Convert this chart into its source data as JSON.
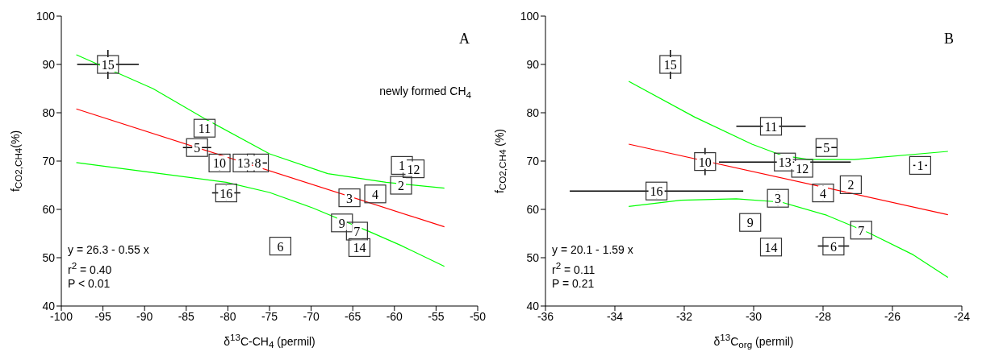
{
  "chart_data": [
    {
      "type": "scatter",
      "xlabel": "δ$^{13}$C-CH$_{4}$ (permil)",
      "ylabel": "f$_{CO2,CH4}$(%)",
      "xlim": [
        -100,
        -50
      ],
      "xticks": [
        -100,
        -95,
        -90,
        -85,
        -80,
        -75,
        -70,
        -65,
        -60,
        -55,
        -50
      ],
      "ylim": [
        40,
        100
      ],
      "yticks": [
        40,
        50,
        60,
        70,
        80,
        90,
        100
      ],
      "annotations": [
        "A",
        "newly formed CH$_{4}$",
        "y = 26.3 - 0.55 x",
        "r$^{2}$ = 0.40",
        "P < 0.01",
        {
          "text": "15",
          "x": -94.4,
          "y": 90.0
        },
        {
          "text": "11",
          "x": -82.8,
          "y": 76.8
        },
        {
          "text": "5",
          "x": -83.7,
          "y": 72.8
        },
        {
          "text": "10",
          "x": -81.0,
          "y": 69.6
        },
        {
          "text": "13",
          "x": -78.1,
          "y": 69.6
        },
        {
          "text": "8",
          "x": -76.4,
          "y": 69.6
        },
        {
          "text": "16",
          "x": -80.2,
          "y": 63.4
        },
        {
          "text": "1",
          "x": -59.1,
          "y": 69.1
        },
        {
          "text": "12",
          "x": -57.7,
          "y": 68.4
        },
        {
          "text": "2",
          "x": -59.2,
          "y": 65.0
        },
        {
          "text": "4",
          "x": -62.3,
          "y": 63.2
        },
        {
          "text": "3",
          "x": -65.4,
          "y": 62.4
        },
        {
          "text": "9",
          "x": -66.3,
          "y": 57.2
        },
        {
          "text": "7",
          "x": -64.5,
          "y": 55.5
        },
        {
          "text": "14",
          "x": -64.2,
          "y": 52.1
        },
        {
          "text": "6",
          "x": -73.7,
          "y": 52.4
        }
      ],
      "series": [
        {
          "type": "scatter",
          "color": "#333333",
          "marker": "square",
          "x": [
            -94.4,
            -82.8,
            -83.7,
            -81.0,
            -78.1,
            -76.4,
            -80.2,
            -59.1,
            -57.7,
            -59.2,
            -62.3,
            -65.4,
            -66.3,
            -64.5,
            -64.2,
            -73.7
          ],
          "values": [
            90.0,
            76.8,
            72.8,
            69.6,
            69.6,
            69.6,
            63.4,
            69.1,
            68.4,
            65.0,
            63.2,
            62.4,
            57.2,
            55.5,
            52.1,
            52.4
          ],
          "errors": [
            3.0,
            1.2,
            1.0,
            1.5,
            null,
            null,
            1.5,
            null,
            null,
            null,
            1.3,
            1.3,
            null,
            null,
            null,
            null
          ],
          "xerrors": [
            3.7,
            null,
            1.7,
            null,
            null,
            1.1,
            1.7,
            null,
            null,
            null,
            null,
            null,
            null,
            null,
            null,
            null
          ]
        },
        {
          "type": "line",
          "color": "#ff0000",
          "x": [
            -98.2,
            -54.0
          ],
          "values": [
            80.8,
            56.4
          ]
        },
        {
          "type": "line",
          "color": "#00ff00",
          "x": [
            -98.2,
            -89.0,
            -82.8,
            -75.0,
            -68.0,
            -61.0,
            -54.0
          ],
          "values": [
            92.0,
            85.0,
            78.8,
            71.5,
            67.4,
            65.6,
            64.4
          ]
        },
        {
          "type": "line",
          "color": "#00ff00",
          "x": [
            -98.2,
            -89.0,
            -80.2,
            -75.0,
            -69.8,
            -63.0,
            -59.3,
            -54.0
          ],
          "values": [
            69.7,
            67.6,
            65.6,
            63.5,
            60.3,
            55.4,
            52.6,
            48.2
          ]
        }
      ]
    },
    {
      "type": "scatter",
      "xlabel": "δ$^{13}$C$_{org}$ (permil)",
      "ylabel": "f$_{CO2,CH4}$ (%)",
      "xlim": [
        -36,
        -24
      ],
      "xticks": [
        -36,
        -34,
        -32,
        -30,
        -28,
        -26,
        -24
      ],
      "ylim": [
        40,
        100
      ],
      "yticks": [
        40,
        50,
        60,
        70,
        80,
        90,
        100
      ],
      "annotations": [
        "B",
        "y = 20.1 - 1.59 x",
        "r$^{2}$ = 0.11",
        "P = 0.21",
        {
          "text": "15",
          "x": -32.4,
          "y": 90.0
        },
        {
          "text": "11",
          "x": -29.5,
          "y": 77.2
        },
        {
          "text": "5",
          "x": -27.9,
          "y": 72.8
        },
        {
          "text": "10",
          "x": -31.4,
          "y": 69.9
        },
        {
          "text": "13",
          "x": -29.1,
          "y": 69.8
        },
        {
          "text": "12",
          "x": -28.6,
          "y": 68.5
        },
        {
          "text": "1",
          "x": -25.2,
          "y": 69.1
        },
        {
          "text": "16",
          "x": -32.8,
          "y": 63.8
        },
        {
          "text": "2",
          "x": -27.2,
          "y": 65.1
        },
        {
          "text": "4",
          "x": -28.0,
          "y": 63.4
        },
        {
          "text": "3",
          "x": -29.3,
          "y": 62.3
        },
        {
          "text": "9",
          "x": -30.1,
          "y": 57.3
        },
        {
          "text": "7",
          "x": -26.9,
          "y": 55.7
        },
        {
          "text": "14",
          "x": -29.5,
          "y": 52.2
        },
        {
          "text": "6",
          "x": -27.7,
          "y": 52.4
        }
      ],
      "series": [
        {
          "type": "scatter",
          "color": "#333333",
          "marker": "square",
          "x": [
            -32.4,
            -29.5,
            -27.9,
            -31.4,
            -29.1,
            -28.6,
            -25.2,
            -32.8,
            -27.2,
            -28.0,
            -29.3,
            -30.1,
            -26.9,
            -29.5,
            -27.7
          ],
          "values": [
            90.0,
            77.2,
            72.8,
            69.9,
            69.8,
            68.5,
            69.1,
            63.8,
            65.1,
            63.4,
            62.3,
            57.3,
            55.7,
            52.2,
            52.4
          ],
          "errors": [
            3.0,
            1.2,
            1.0,
            2.8,
            1.0,
            null,
            null,
            1.5,
            null,
            1.5,
            1.5,
            null,
            null,
            null,
            null
          ],
          "xerrors": [
            null,
            1.0,
            0.3,
            null,
            1.9,
            null,
            0.2,
            2.5,
            null,
            null,
            null,
            null,
            null,
            null,
            0.45
          ]
        },
        {
          "type": "line",
          "color": "#ff0000",
          "x": [
            -33.6,
            -24.4
          ],
          "values": [
            73.5,
            58.9
          ]
        },
        {
          "type": "line",
          "color": "#00ff00",
          "x": [
            -33.6,
            -31.7,
            -30.05,
            -29.2,
            -28.4,
            -27.1,
            -24.4
          ],
          "values": [
            86.5,
            79.1,
            73.5,
            71.2,
            70.3,
            70.3,
            72.0
          ]
        },
        {
          "type": "line",
          "color": "#00ff00",
          "x": [
            -33.6,
            -32.1,
            -30.5,
            -29.2,
            -27.9,
            -26.7,
            -25.4,
            -24.4
          ],
          "values": [
            60.6,
            61.9,
            62.2,
            61.5,
            58.8,
            55.2,
            50.6,
            45.9
          ]
        }
      ]
    }
  ]
}
